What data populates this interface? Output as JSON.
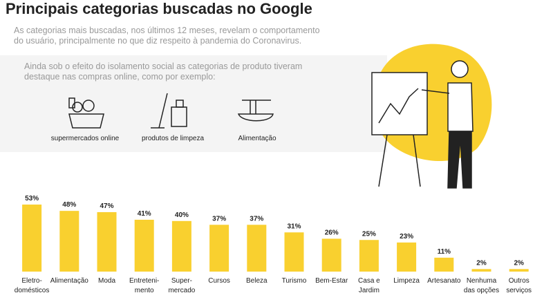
{
  "chart_data": {
    "type": "bar",
    "title": "Principais categorias buscadas no Google",
    "subtitle": [
      "As categorias mais buscadas, nos últimos 12 meses, revelam o comportamento",
      "do usuário, principalmente no que diz respeito à pandemia do Coronavirus."
    ],
    "intro": [
      "Ainda sob o efeito do isolamento social as categorias de produto tiveram",
      "destaque nas compras online, como por exemplo:"
    ],
    "examples": [
      "supermercados online",
      "produtos de limpeza",
      "Alimentação"
    ],
    "categories": [
      "Eletro-\ndomésticos",
      "Alimentação",
      "Moda",
      "Entreteni-\nmento",
      "Super-\nmercado",
      "Cursos",
      "Beleza",
      "Turismo",
      "Bem-Estar",
      "Casa e\nJardim",
      "Limpeza",
      "Artesanato",
      "Nenhuma\ndas opções",
      "Outros\nserviços"
    ],
    "values": [
      53,
      48,
      47,
      41,
      40,
      37,
      37,
      31,
      26,
      25,
      23,
      11,
      2,
      2
    ],
    "value_labels": [
      "53%",
      "48%",
      "47%",
      "41%",
      "40%",
      "37%",
      "37%",
      "31%",
      "26%",
      "25%",
      "23%",
      "11%",
      "2%",
      "2%"
    ],
    "color": "#f9d02f"
  }
}
